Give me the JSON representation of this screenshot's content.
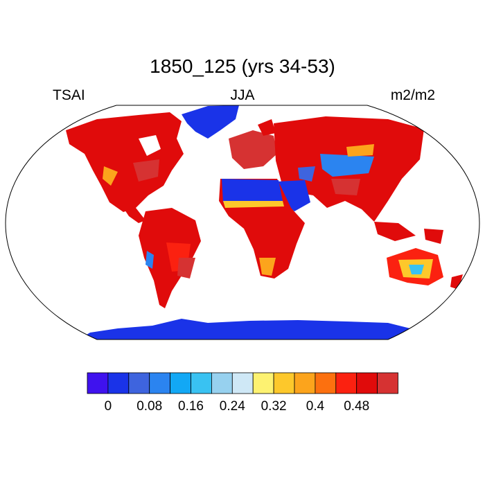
{
  "title": "1850_125 (yrs 34-53)",
  "left_label": "TSAI",
  "center_label": "JJA",
  "right_label": "m2/m2",
  "colorbar": {
    "colors": [
      "#3f12ee",
      "#1a33e8",
      "#3e64de",
      "#2b84f0",
      "#12a8f5",
      "#39c2f2",
      "#97d1ef",
      "#cfe8f6",
      "#fdf271",
      "#fdc82b",
      "#fca41c",
      "#fc700f",
      "#fb2110",
      "#e00b0b",
      "#d63232"
    ],
    "tick_labels": [
      "0",
      "0.08",
      "0.16",
      "0.24",
      "0.32",
      "0.4",
      "0.48"
    ]
  }
}
